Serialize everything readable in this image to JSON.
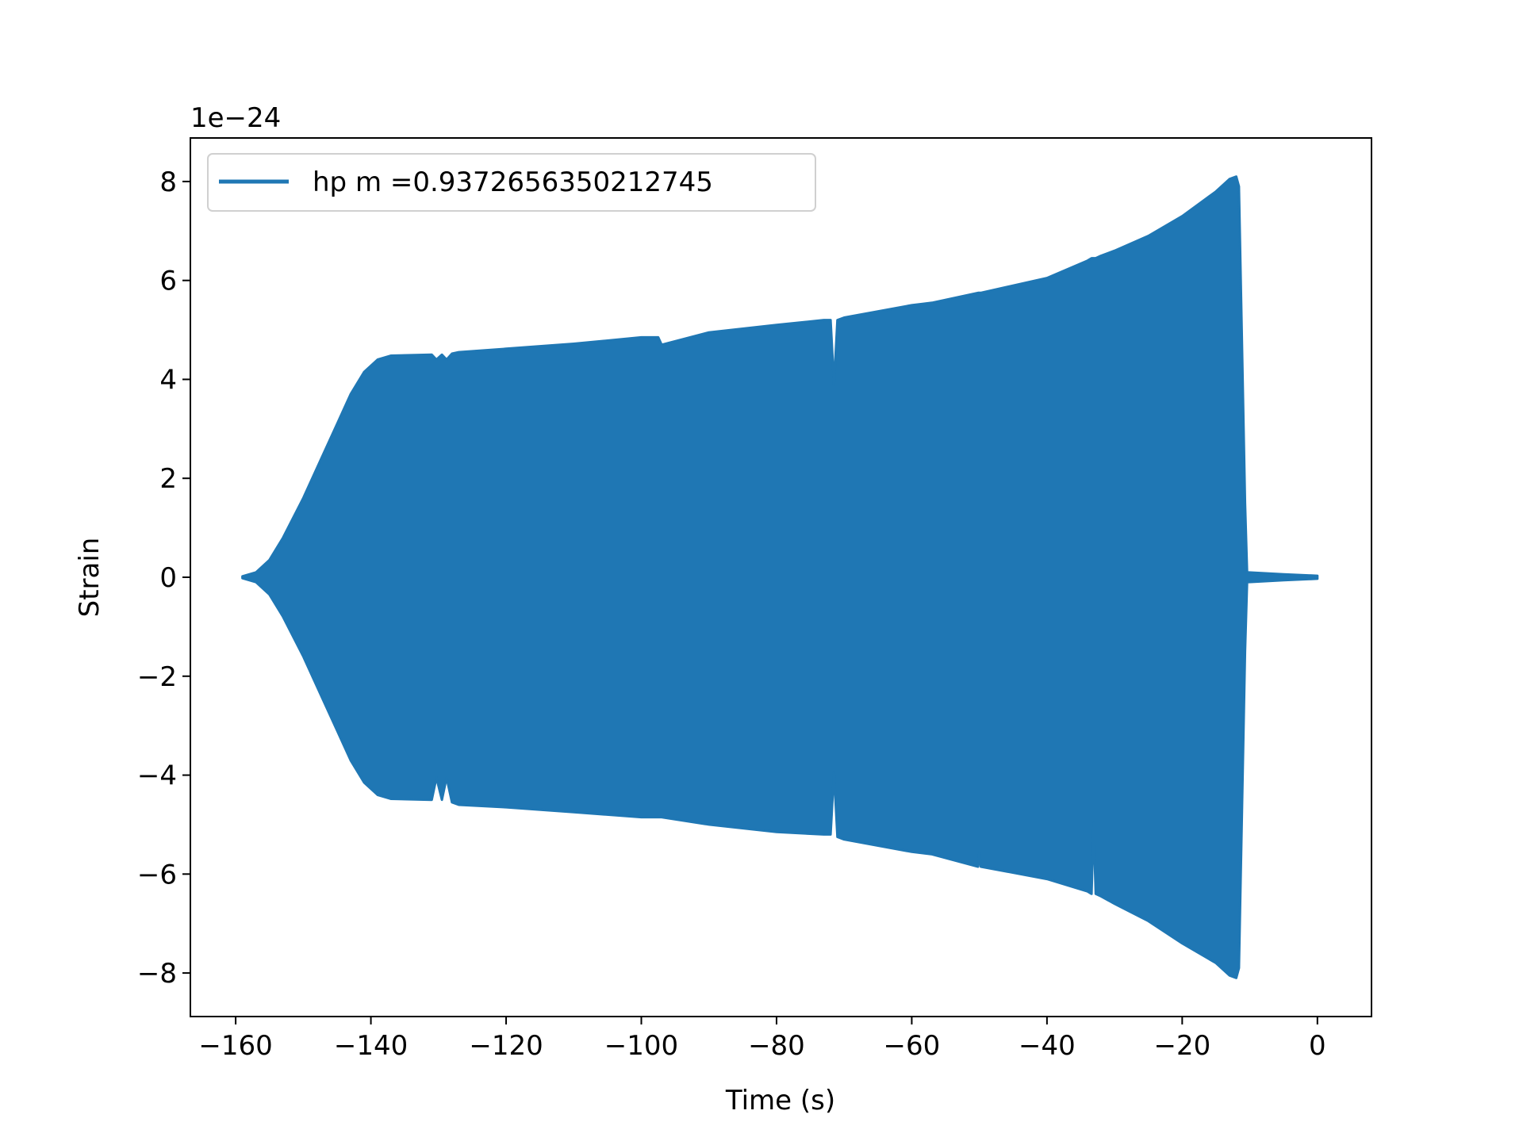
{
  "chart_data": {
    "type": "line",
    "title": "",
    "xlabel": "Time (s)",
    "ylabel": "Strain",
    "y_offset_label": "1e−24",
    "xlim": [
      -166.7,
      8.0
    ],
    "ylim": [
      -8.88,
      8.88
    ],
    "xticks": [
      -160,
      -140,
      -120,
      -100,
      -80,
      -60,
      -40,
      -20,
      0
    ],
    "xtick_labels": [
      "−160",
      "−140",
      "−120",
      "−100",
      "−80",
      "−60",
      "−40",
      "−20",
      "0"
    ],
    "yticks": [
      -8,
      -6,
      -4,
      -2,
      0,
      2,
      4,
      6,
      8
    ],
    "ytick_labels": [
      "−8",
      "−6",
      "−4",
      "−2",
      "0",
      "2",
      "4",
      "6",
      "8"
    ],
    "grid": false,
    "legend_placement": "upper-left",
    "series": [
      {
        "name": "hp m =0.9372656350212745",
        "color": "#1f77b4",
        "note_type": "envelope",
        "t": [
          -159,
          -157,
          -155,
          -153,
          -150,
          -147,
          -145,
          -143,
          -141,
          -139,
          -137,
          -131,
          -130.3,
          -129.5,
          -128.8,
          -128,
          -127,
          -120,
          -110,
          -100,
          -97.5,
          -97,
          -90,
          -80,
          -73,
          -72,
          -71.5,
          -71,
          -70,
          -60,
          -57,
          -50.2,
          -50,
          -49.8,
          -40,
          -34,
          -33.4,
          -33.1,
          -32.8,
          -32,
          -30,
          -25,
          -20,
          -15,
          -13,
          -12,
          -11.6,
          -11.2,
          -10.7,
          -10.4,
          -5,
          0
        ],
        "upper": [
          0.02,
          0.1,
          0.35,
          0.8,
          1.6,
          2.5,
          3.1,
          3.7,
          4.15,
          4.4,
          4.48,
          4.5,
          4.4,
          4.5,
          4.4,
          4.52,
          4.55,
          4.62,
          4.72,
          4.85,
          4.85,
          4.7,
          4.95,
          5.1,
          5.2,
          5.2,
          3.9,
          5.2,
          5.25,
          5.5,
          5.55,
          5.75,
          5.75,
          5.75,
          6.05,
          6.4,
          6.45,
          6.45,
          6.45,
          6.5,
          6.6,
          6.9,
          7.3,
          7.8,
          8.05,
          8.1,
          7.9,
          5.0,
          1.5,
          0.1,
          0.06,
          0.03
        ],
        "lower": [
          -0.02,
          -0.1,
          -0.35,
          -0.8,
          -1.6,
          -2.5,
          -3.1,
          -3.7,
          -4.15,
          -4.4,
          -4.48,
          -4.5,
          -4.05,
          -4.5,
          -4.05,
          -4.55,
          -4.6,
          -4.65,
          -4.75,
          -4.85,
          -4.85,
          -4.85,
          -5.0,
          -5.15,
          -5.2,
          -5.2,
          -3.95,
          -5.25,
          -5.3,
          -5.55,
          -5.6,
          -5.85,
          -5.55,
          -5.85,
          -6.1,
          -6.35,
          -6.4,
          -4.97,
          -6.4,
          -6.45,
          -6.6,
          -6.95,
          -7.4,
          -7.8,
          -8.05,
          -8.1,
          -7.9,
          -5.0,
          -1.5,
          -0.1,
          -0.06,
          -0.03
        ]
      }
    ]
  }
}
